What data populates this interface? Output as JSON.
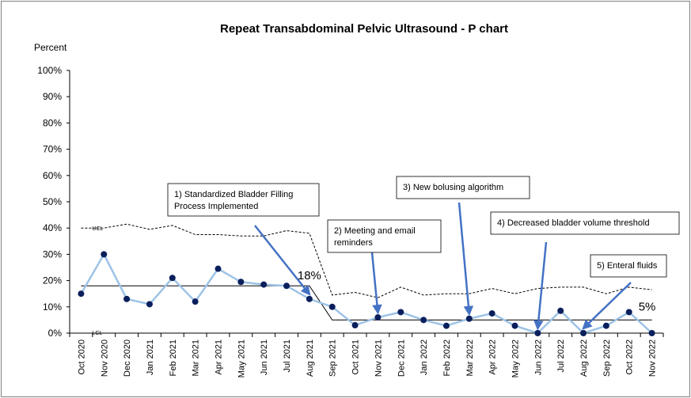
{
  "chart_data": {
    "type": "line",
    "title": "Repeat Transabdominal Pelvic Ultrasound - P chart",
    "ylabel": "Percent",
    "xlabel": "",
    "ylim": [
      0,
      100
    ],
    "y_ticks": [
      "0%",
      "10%",
      "20%",
      "30%",
      "40%",
      "50%",
      "60%",
      "70%",
      "80%",
      "90%",
      "100%"
    ],
    "categories": [
      "Oct 2020",
      "Nov 2020",
      "Dec 2020",
      "Jan 2021",
      "Feb 2021",
      "Mar 2021",
      "Apr 2021",
      "May 2021",
      "Jun 2021",
      "Jul 2021",
      "Aug 2021",
      "Sep 2021",
      "Oct 2021",
      "Nov 2021",
      "Dec 2021",
      "Jan 2022",
      "Feb 2022",
      "Mar 2022",
      "Apr 2022",
      "May 2022",
      "Jun 2022",
      "Jul 2022",
      "Aug 2022",
      "Sep 2022",
      "Oct 2022",
      "Nov 2022"
    ],
    "series": [
      {
        "name": "",
        "color": "#9dc3e6",
        "marker_color": "#0a1f5c",
        "values": [
          15,
          30,
          13,
          11,
          21,
          12,
          24.5,
          19.5,
          18.5,
          18,
          13,
          10,
          3,
          6,
          8,
          5,
          2.8,
          5.5,
          7.5,
          2.8,
          0,
          8.5,
          0,
          2.8,
          8,
          0
        ]
      }
    ],
    "center_line": {
      "color": "#000000",
      "segments": [
        {
          "from": "Oct 2020",
          "to": "Aug 2021",
          "value": 18
        },
        {
          "from": "Sep 2021",
          "to": "Nov 2022",
          "value": 5
        }
      ]
    },
    "ucl": {
      "label": "UCL",
      "style": "dashed",
      "values": [
        40,
        40,
        41.5,
        39.5,
        41,
        37.5,
        37.5,
        37,
        37,
        39,
        38,
        14.5,
        15.5,
        13.5,
        17.5,
        14.5,
        15,
        15,
        17,
        15,
        17,
        17.5,
        17.5,
        15,
        17.5,
        16.5
      ]
    },
    "lcl": {
      "label": "LCL",
      "values": [
        0,
        0,
        0,
        0,
        0,
        0,
        0,
        0,
        0,
        0,
        0,
        0,
        0,
        0,
        0,
        0,
        0,
        0,
        0,
        0,
        0,
        0,
        0,
        0,
        0,
        0
      ]
    },
    "value_labels": [
      {
        "text": "18%",
        "category": "Aug 2021",
        "value": 18
      },
      {
        "text": "5%",
        "category": "Nov 2022",
        "value": 5
      }
    ],
    "annotations": [
      {
        "lines": [
          "1) Standardized Bladder Filling",
          "Process Implemented"
        ],
        "target": "Aug 2021"
      },
      {
        "lines": [
          "2) Meeting and email",
          "reminders"
        ],
        "target": "Nov 2021"
      },
      {
        "lines": [
          "3) New bolusing algorithm"
        ],
        "target": "Mar 2022"
      },
      {
        "lines": [
          "4) Decreased bladder volume threshold"
        ],
        "target": "Jun 2022"
      },
      {
        "lines": [
          "5) Enteral fluids"
        ],
        "target": "Aug 2022"
      }
    ],
    "arrow_color": "#4472c4",
    "grid": false
  }
}
